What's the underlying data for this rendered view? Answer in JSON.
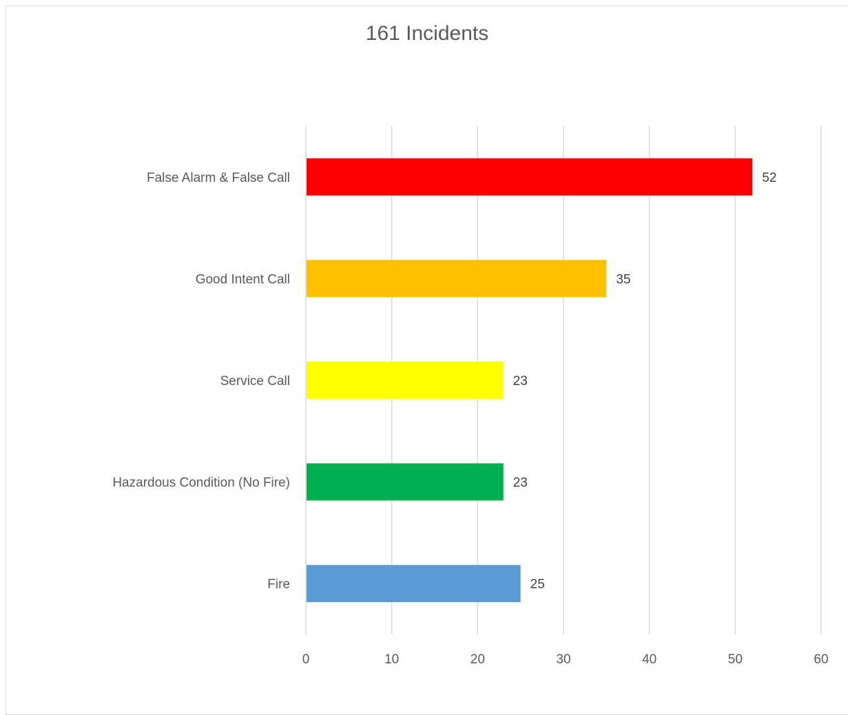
{
  "chart_data": {
    "type": "bar",
    "orientation": "horizontal",
    "title": "161 Incidents",
    "xlabel": "",
    "ylabel": "",
    "categories": [
      "False Alarm & False Call",
      "Good Intent Call",
      "Service Call",
      "Hazardous Condition (No Fire)",
      "Fire"
    ],
    "values": [
      52,
      35,
      23,
      23,
      25
    ],
    "colors": [
      "#ff0000",
      "#ffc000",
      "#ffff00",
      "#00b050",
      "#5b9bd5"
    ],
    "xlim": [
      0,
      60
    ],
    "x_ticks": [
      0,
      10,
      20,
      30,
      40,
      50,
      60
    ],
    "tick_labels": [
      "0",
      "10",
      "20",
      "30",
      "40",
      "50",
      "60"
    ],
    "data_labels": [
      "52",
      "35",
      "23",
      "23",
      "25"
    ],
    "grid": "vertical",
    "legend": "none"
  }
}
